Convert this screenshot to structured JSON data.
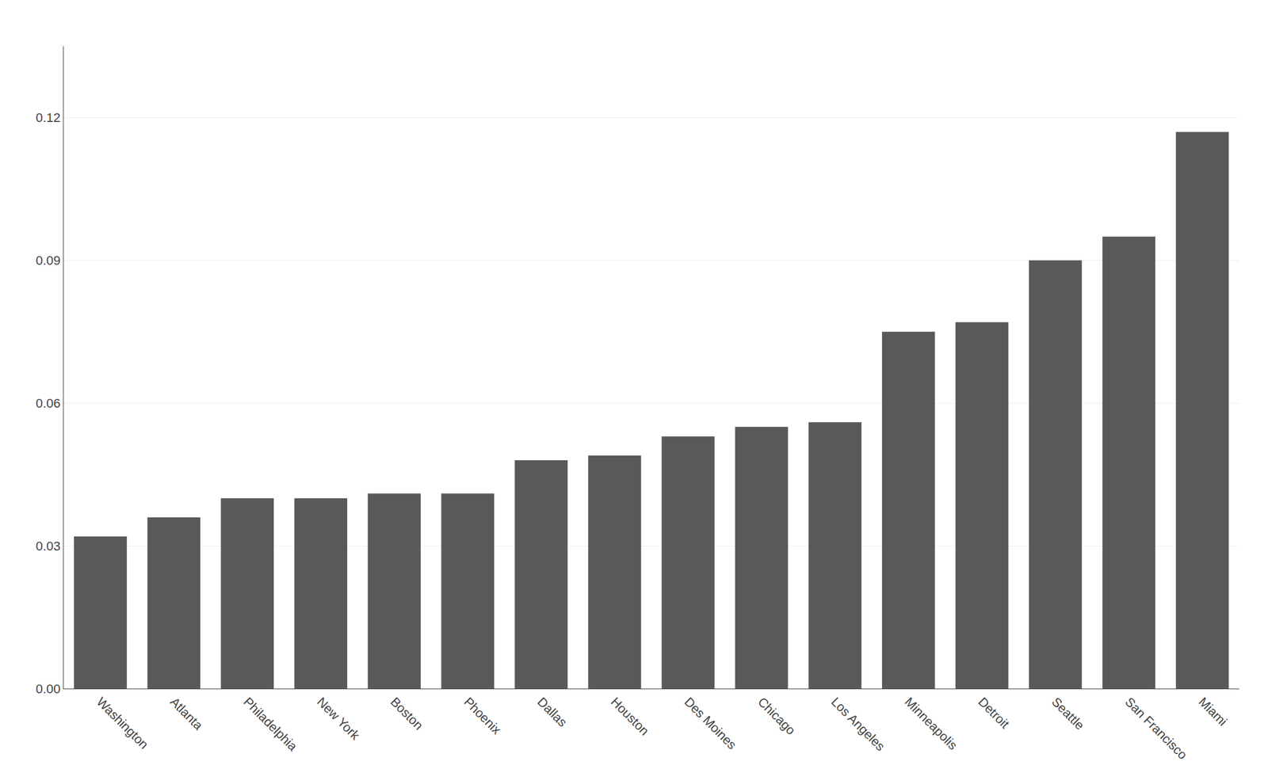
{
  "chart_data": {
    "type": "bar",
    "categories": [
      "Washington",
      "Atlanta",
      "Philadelphia",
      "New York",
      "Boston",
      "Phoenix",
      "Dallas",
      "Houston",
      "Des Moines",
      "Chicago",
      "Los Angeles",
      "Minneapolis",
      "Detroit",
      "Seattle",
      "San Francisco",
      "Miami"
    ],
    "values": [
      0.032,
      0.036,
      0.04,
      0.04,
      0.041,
      0.041,
      0.048,
      0.049,
      0.053,
      0.055,
      0.056,
      0.075,
      0.077,
      0.09,
      0.095,
      0.117
    ],
    "color": "#595959",
    "ylim": [
      0,
      0.135
    ],
    "yticks": [
      {
        "value": 0,
        "label": "0.00"
      },
      0.03,
      0.06,
      0.09,
      0.12
    ],
    "grid": true
  }
}
